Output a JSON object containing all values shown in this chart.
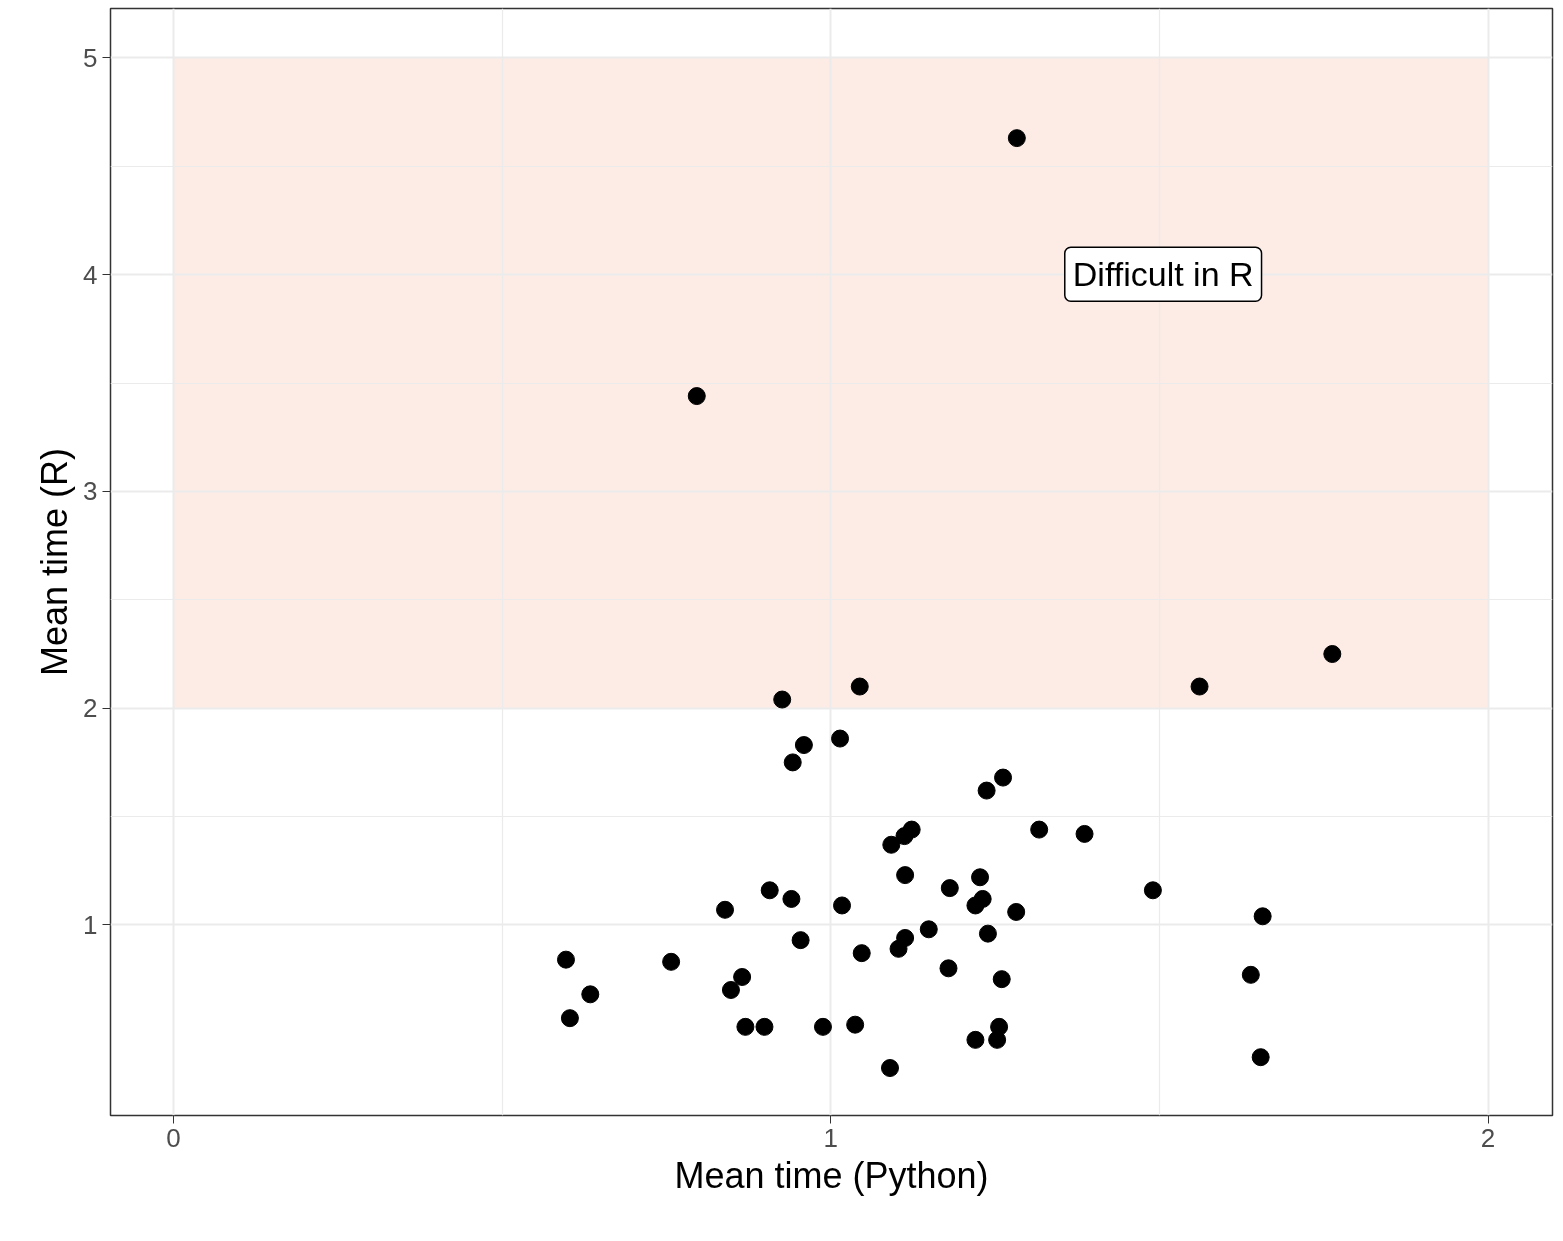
{
  "chart_data": {
    "type": "scatter",
    "xlabel": "Mean time (Python)",
    "ylabel": "Mean time (R)",
    "xlim": [
      -0.096,
      2.098
    ],
    "ylim": [
      0.121,
      5.228
    ],
    "xticks": [
      0,
      1,
      2
    ],
    "yticks": [
      1,
      2,
      3,
      4,
      5
    ],
    "grid": true,
    "marker": "circle",
    "bands": [
      {
        "axis": "y",
        "from": 2,
        "to": 5,
        "color": "#fdece6"
      }
    ],
    "annotations": [
      "Difficult in R"
    ],
    "series": [
      {
        "color": "#000000",
        "x": [
          1.283,
          0.796,
          1.763,
          1.561,
          1.044,
          0.926,
          1.014,
          0.959,
          0.942,
          1.262,
          1.237,
          1.317,
          1.386,
          1.123,
          1.112,
          1.092,
          1.113,
          1.227,
          1.181,
          1.49,
          0.907,
          0.94,
          1.231,
          1.22,
          1.017,
          0.839,
          1.282,
          1.657,
          1.149,
          1.239,
          1.113,
          0.954,
          1.103,
          1.047,
          0.597,
          0.757,
          1.179,
          1.639,
          0.865,
          1.26,
          0.848,
          0.634,
          0.603,
          0.87,
          0.899,
          0.988,
          1.037,
          1.256,
          1.22,
          1.253,
          1.654,
          1.09
        ],
        "values": [
          4.63,
          3.44,
          2.25,
          2.1,
          2.1,
          2.04,
          1.86,
          1.83,
          1.75,
          1.68,
          1.62,
          1.44,
          1.42,
          1.44,
          1.41,
          1.37,
          1.23,
          1.22,
          1.17,
          1.16,
          1.16,
          1.12,
          1.12,
          1.09,
          1.09,
          1.07,
          1.06,
          1.04,
          0.98,
          0.96,
          0.94,
          0.93,
          0.89,
          0.87,
          0.84,
          0.83,
          0.8,
          0.77,
          0.76,
          0.75,
          0.7,
          0.68,
          0.57,
          0.53,
          0.53,
          0.53,
          0.54,
          0.53,
          0.47,
          0.47,
          0.39,
          0.34
        ]
      }
    ]
  }
}
